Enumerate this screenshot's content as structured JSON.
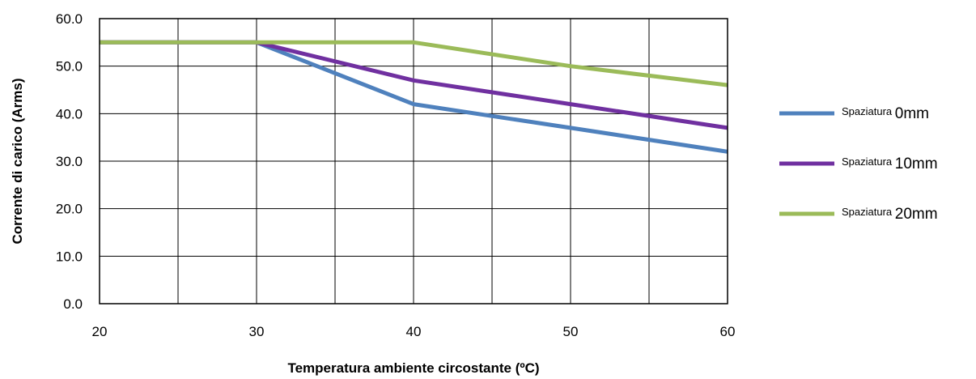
{
  "chart_data": {
    "type": "line",
    "xlabel": "Temperatura ambiente circostante (ºC)",
    "ylabel": "Corrente di carico (Arms)",
    "xlim": [
      20,
      60
    ],
    "ylim": [
      0,
      60
    ],
    "x_ticks": [
      "20",
      "30",
      "40",
      "50",
      "60"
    ],
    "y_ticks": [
      "0.0",
      "10.0",
      "20.0",
      "30.0",
      "40.0",
      "50.0",
      "60.0"
    ],
    "grid": true,
    "legend_position": "right",
    "series": [
      {
        "name_prefix": "Spaziatura",
        "name_suffix": "0mm",
        "color": "#4f81bd",
        "x": [
          20,
          30,
          40,
          50,
          60
        ],
        "y": [
          55,
          55,
          42,
          37,
          32
        ]
      },
      {
        "name_prefix": "Spaziatura",
        "name_suffix": "10mm",
        "color": "#7030a0",
        "x": [
          20,
          30,
          40,
          50,
          60
        ],
        "y": [
          55,
          55,
          47,
          42,
          37
        ]
      },
      {
        "name_prefix": "Spaziatura",
        "name_suffix": "20mm",
        "color": "#9bbb59",
        "x": [
          20,
          30,
          40,
          50,
          60
        ],
        "y": [
          55,
          55,
          55,
          50,
          46
        ]
      }
    ]
  }
}
